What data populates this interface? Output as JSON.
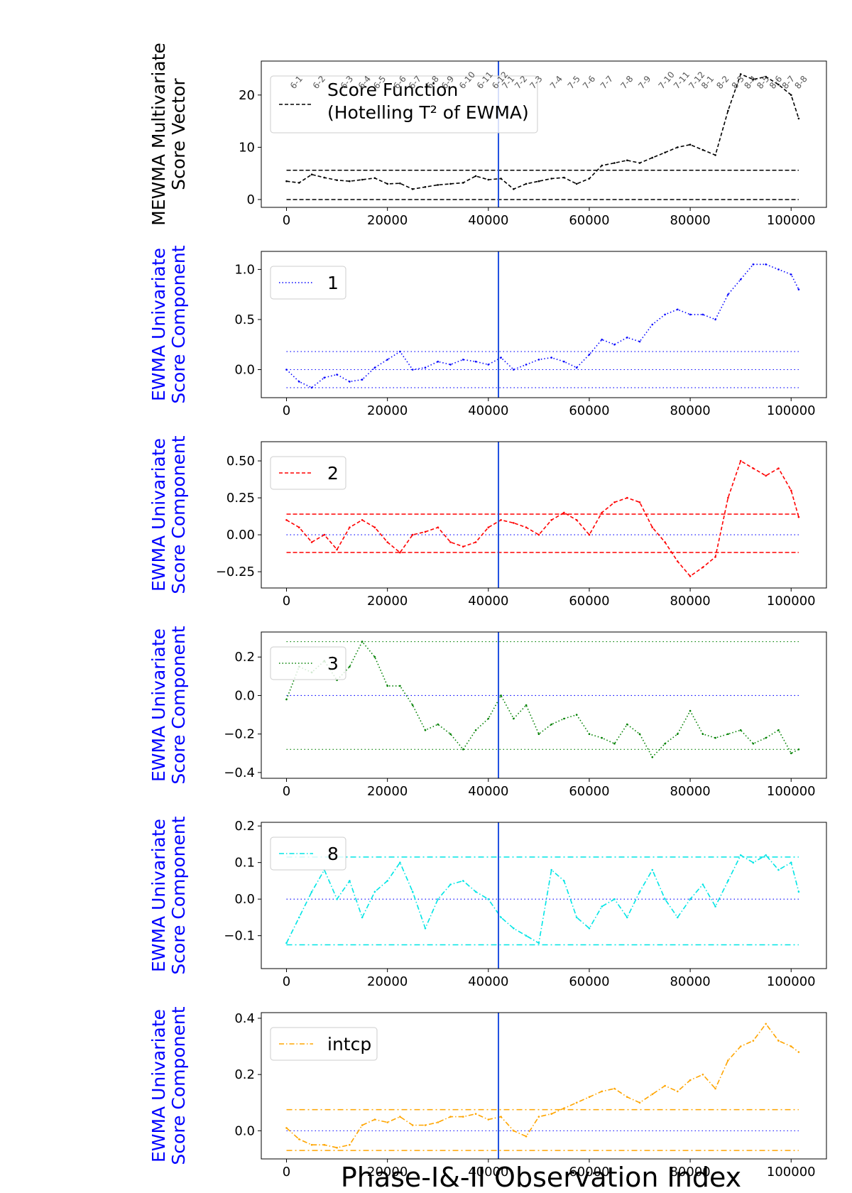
{
  "figure": {
    "xlabel": "Phase-I&-II Observation Index"
  },
  "chart_data": [
    {
      "type": "line",
      "ylabel_lines": [
        "MEWMA Multivariate",
        "Score Vector"
      ],
      "ylabel_color": "#000000",
      "xlim": [
        -5000,
        107000
      ],
      "ylim": [
        -1.5,
        26.5
      ],
      "xticks": [
        0,
        20000,
        40000,
        60000,
        80000,
        100000
      ],
      "yticks": [
        0,
        10,
        20
      ],
      "ytick_labels": [
        "0",
        "10",
        "20"
      ],
      "phase_split_x": 42000,
      "hlines": [
        {
          "y": 0,
          "dash": "dashed",
          "color": "#000000"
        },
        {
          "y": 5.6,
          "dash": "dashed",
          "color": "#000000"
        }
      ],
      "legend": {
        "lines": [
          "Score Function",
          "(Hotelling T² of EWMA)"
        ],
        "dash": "dashed",
        "color": "#000000",
        "placement": "upper-left"
      },
      "month_labels": [
        {
          "label": "6-1",
          "x": 1500
        },
        {
          "label": "6-2",
          "x": 6000
        },
        {
          "label": "6-3",
          "x": 11500
        },
        {
          "label": "6-4",
          "x": 15000
        },
        {
          "label": "6-5",
          "x": 18000
        },
        {
          "label": "6-6",
          "x": 22000
        },
        {
          "label": "6-7",
          "x": 25000
        },
        {
          "label": "6-8",
          "x": 28500
        },
        {
          "label": "6-9",
          "x": 31500
        },
        {
          "label": "6-10",
          "x": 35000
        },
        {
          "label": "6-11",
          "x": 38500
        },
        {
          "label": "6-12",
          "x": 41500
        },
        {
          "label": "7-1",
          "x": 43500
        },
        {
          "label": "7-2",
          "x": 46000
        },
        {
          "label": "7-3",
          "x": 49000
        },
        {
          "label": "7-4",
          "x": 53000
        },
        {
          "label": "7-5",
          "x": 56500
        },
        {
          "label": "7-6",
          "x": 59500
        },
        {
          "label": "7-7",
          "x": 63000
        },
        {
          "label": "7-8",
          "x": 67000
        },
        {
          "label": "7-9",
          "x": 70500
        },
        {
          "label": "7-10",
          "x": 74500
        },
        {
          "label": "7-11",
          "x": 77500
        },
        {
          "label": "7-12",
          "x": 80500
        },
        {
          "label": "8-1",
          "x": 83000
        },
        {
          "label": "8-2",
          "x": 86000
        },
        {
          "label": "8-3",
          "x": 89000
        },
        {
          "label": "8-4",
          "x": 91500
        },
        {
          "label": "8-5",
          "x": 94000
        },
        {
          "label": "8-6",
          "x": 96500
        },
        {
          "label": "8-7",
          "x": 99000
        },
        {
          "label": "8-8",
          "x": 101500
        }
      ],
      "series": [
        {
          "color": "#000000",
          "dash": "dashed",
          "x": [
            0,
            2500,
            5000,
            7500,
            10000,
            12500,
            15000,
            17500,
            20000,
            22500,
            25000,
            27500,
            30000,
            32500,
            35000,
            37500,
            40000,
            42500,
            45000,
            47500,
            50000,
            52500,
            55000,
            57500,
            60000,
            62500,
            65000,
            67500,
            70000,
            72500,
            75000,
            77500,
            80000,
            82500,
            85000,
            87500,
            90000,
            92500,
            95000,
            97500,
            100000,
            101500
          ],
          "y": [
            3.5,
            3.2,
            4.8,
            4.2,
            3.7,
            3.5,
            3.8,
            4.1,
            3.0,
            3.1,
            2.0,
            2.4,
            2.8,
            3.0,
            3.2,
            4.5,
            3.8,
            4.0,
            2.0,
            3.0,
            3.5,
            4.0,
            4.2,
            3.0,
            4.0,
            6.5,
            7.0,
            7.5,
            7.0,
            8.0,
            9.0,
            10.0,
            10.5,
            9.5,
            8.5,
            17.0,
            24.0,
            23.0,
            23.5,
            22.0,
            20.0,
            15.5
          ]
        }
      ]
    },
    {
      "type": "line",
      "ylabel_lines": [
        "EWMA Univariate",
        "Score Component"
      ],
      "ylabel_color": "#0000ff",
      "xlim": [
        -5000,
        107000
      ],
      "ylim": [
        -0.28,
        1.18
      ],
      "xticks": [
        0,
        20000,
        40000,
        60000,
        80000,
        100000
      ],
      "yticks": [
        0,
        0.5,
        1.0
      ],
      "ytick_labels": [
        "0.0",
        "0.5",
        "1.0"
      ],
      "phase_split_x": 42000,
      "hlines": [
        {
          "y": 0.18,
          "dash": "dotted",
          "color": "#0000ff"
        },
        {
          "y": 0,
          "dash": "dotted",
          "color": "#0000ff"
        },
        {
          "y": -0.18,
          "dash": "dotted",
          "color": "#0000ff"
        }
      ],
      "legend": {
        "lines": [
          "1"
        ],
        "dash": "dotted",
        "color": "#0000ff",
        "placement": "upper-left"
      },
      "series": [
        {
          "name": "1",
          "color": "#0000ff",
          "dash": "dotted",
          "x": [
            0,
            2500,
            5000,
            7500,
            10000,
            12500,
            15000,
            17500,
            20000,
            22500,
            25000,
            27500,
            30000,
            32500,
            35000,
            37500,
            40000,
            42500,
            45000,
            47500,
            50000,
            52500,
            55000,
            57500,
            60000,
            62500,
            65000,
            67500,
            70000,
            72500,
            75000,
            77500,
            80000,
            82500,
            85000,
            87500,
            90000,
            92500,
            95000,
            97500,
            100000,
            101500
          ],
          "y": [
            0.0,
            -0.12,
            -0.18,
            -0.08,
            -0.05,
            -0.12,
            -0.1,
            0.02,
            0.1,
            0.18,
            0.0,
            0.02,
            0.08,
            0.05,
            0.1,
            0.08,
            0.05,
            0.12,
            0.0,
            0.05,
            0.1,
            0.12,
            0.08,
            0.02,
            0.15,
            0.3,
            0.25,
            0.32,
            0.28,
            0.45,
            0.55,
            0.6,
            0.55,
            0.55,
            0.5,
            0.75,
            0.9,
            1.05,
            1.05,
            1.0,
            0.95,
            0.8
          ]
        }
      ]
    },
    {
      "type": "line",
      "ylabel_lines": [
        "EWMA Univariate",
        "Score Component"
      ],
      "ylabel_color": "#0000ff",
      "xlim": [
        -5000,
        107000
      ],
      "ylim": [
        -0.36,
        0.63
      ],
      "xticks": [
        0,
        20000,
        40000,
        60000,
        80000,
        100000
      ],
      "yticks": [
        -0.25,
        0,
        0.25,
        0.5
      ],
      "ytick_labels": [
        "−0.25",
        "0.00",
        "0.25",
        "0.50"
      ],
      "phase_split_x": 42000,
      "hlines": [
        {
          "y": 0.14,
          "dash": "dashed",
          "color": "#ff0000"
        },
        {
          "y": 0,
          "dash": "dotted",
          "color": "#0000ff"
        },
        {
          "y": -0.12,
          "dash": "dashed",
          "color": "#ff0000"
        }
      ],
      "legend": {
        "lines": [
          "2"
        ],
        "dash": "dashed",
        "color": "#ff0000",
        "placement": "upper-left"
      },
      "series": [
        {
          "name": "2",
          "color": "#ff0000",
          "dash": "dashed",
          "x": [
            0,
            2500,
            5000,
            7500,
            10000,
            12500,
            15000,
            17500,
            20000,
            22500,
            25000,
            27500,
            30000,
            32500,
            35000,
            37500,
            40000,
            42500,
            45000,
            47500,
            50000,
            52500,
            55000,
            57500,
            60000,
            62500,
            65000,
            67500,
            70000,
            72500,
            75000,
            77500,
            80000,
            82500,
            85000,
            87500,
            90000,
            92500,
            95000,
            97500,
            100000,
            101500
          ],
          "y": [
            0.1,
            0.05,
            -0.05,
            0.0,
            -0.1,
            0.05,
            0.1,
            0.05,
            -0.05,
            -0.12,
            0.0,
            0.02,
            0.05,
            -0.05,
            -0.08,
            -0.05,
            0.05,
            0.1,
            0.08,
            0.05,
            0.0,
            0.1,
            0.15,
            0.1,
            0.0,
            0.15,
            0.22,
            0.25,
            0.22,
            0.05,
            -0.05,
            -0.18,
            -0.28,
            -0.22,
            -0.15,
            0.25,
            0.5,
            0.45,
            0.4,
            0.45,
            0.3,
            0.12
          ]
        }
      ]
    },
    {
      "type": "line",
      "ylabel_lines": [
        "EWMA Univariate",
        "Score Component"
      ],
      "ylabel_color": "#0000ff",
      "xlim": [
        -5000,
        107000
      ],
      "ylim": [
        -0.43,
        0.33
      ],
      "xticks": [
        0,
        20000,
        40000,
        60000,
        80000,
        100000
      ],
      "yticks": [
        -0.4,
        -0.2,
        0,
        0.2
      ],
      "ytick_labels": [
        "−0.4",
        "−0.2",
        "0.0",
        "0.2"
      ],
      "phase_split_x": 42000,
      "hlines": [
        {
          "y": 0.28,
          "dash": "dotted",
          "color": "#008000"
        },
        {
          "y": 0,
          "dash": "dotted",
          "color": "#0000ff"
        },
        {
          "y": -0.28,
          "dash": "dotted",
          "color": "#008000"
        }
      ],
      "legend": {
        "lines": [
          "3"
        ],
        "dash": "dotted",
        "color": "#008000",
        "placement": "upper-left"
      },
      "series": [
        {
          "name": "3",
          "color": "#008000",
          "dash": "dotted",
          "x": [
            0,
            2500,
            5000,
            7500,
            10000,
            12500,
            15000,
            17500,
            20000,
            22500,
            25000,
            27500,
            30000,
            32500,
            35000,
            37500,
            40000,
            42500,
            45000,
            47500,
            50000,
            52500,
            55000,
            57500,
            60000,
            62500,
            65000,
            67500,
            70000,
            72500,
            75000,
            77500,
            80000,
            82500,
            85000,
            87500,
            90000,
            92500,
            95000,
            97500,
            100000,
            101500
          ],
          "y": [
            -0.02,
            0.15,
            0.12,
            0.18,
            0.08,
            0.15,
            0.28,
            0.2,
            0.05,
            0.05,
            -0.05,
            -0.18,
            -0.15,
            -0.2,
            -0.28,
            -0.18,
            -0.12,
            0.0,
            -0.12,
            -0.05,
            -0.2,
            -0.15,
            -0.12,
            -0.1,
            -0.2,
            -0.22,
            -0.25,
            -0.15,
            -0.2,
            -0.32,
            -0.25,
            -0.2,
            -0.08,
            -0.2,
            -0.22,
            -0.2,
            -0.18,
            -0.25,
            -0.22,
            -0.18,
            -0.3,
            -0.28
          ]
        }
      ]
    },
    {
      "type": "line",
      "ylabel_lines": [
        "EWMA Univariate",
        "Score Component"
      ],
      "ylabel_color": "#0000ff",
      "xlim": [
        -5000,
        107000
      ],
      "ylim": [
        -0.19,
        0.21
      ],
      "xticks": [
        0,
        20000,
        40000,
        60000,
        80000,
        100000
      ],
      "yticks": [
        -0.1,
        0,
        0.1,
        0.2
      ],
      "ytick_labels": [
        "−0.1",
        "0.0",
        "0.1",
        "0.2"
      ],
      "phase_split_x": 42000,
      "hlines": [
        {
          "y": 0.115,
          "dash": "dashdot",
          "color": "#00e5e5"
        },
        {
          "y": 0,
          "dash": "dotted",
          "color": "#0000ff"
        },
        {
          "y": -0.125,
          "dash": "dashdot",
          "color": "#00e5e5"
        }
      ],
      "legend": {
        "lines": [
          "8"
        ],
        "dash": "dashdot",
        "color": "#00e5e5",
        "placement": "upper-left"
      },
      "series": [
        {
          "name": "8",
          "color": "#00e5e5",
          "dash": "dashdot",
          "x": [
            0,
            2500,
            5000,
            7500,
            10000,
            12500,
            15000,
            17500,
            20000,
            22500,
            25000,
            27500,
            30000,
            32500,
            35000,
            37500,
            40000,
            42500,
            45000,
            47500,
            50000,
            52500,
            55000,
            57500,
            60000,
            62500,
            65000,
            67500,
            70000,
            72500,
            75000,
            77500,
            80000,
            82500,
            85000,
            87500,
            90000,
            92500,
            95000,
            97500,
            100000,
            101500
          ],
          "y": [
            -0.12,
            -0.05,
            0.02,
            0.08,
            0.0,
            0.05,
            -0.05,
            0.02,
            0.05,
            0.1,
            0.02,
            -0.08,
            0.0,
            0.04,
            0.05,
            0.02,
            0.0,
            -0.05,
            -0.08,
            -0.1,
            -0.12,
            0.08,
            0.05,
            -0.05,
            -0.08,
            -0.02,
            0.0,
            -0.05,
            0.02,
            0.08,
            0.0,
            -0.05,
            0.0,
            0.04,
            -0.02,
            0.05,
            0.12,
            0.1,
            0.12,
            0.08,
            0.1,
            0.02
          ]
        }
      ]
    },
    {
      "type": "line",
      "ylabel_lines": [
        "EWMA Univariate",
        "Score Component"
      ],
      "ylabel_color": "#0000ff",
      "xlim": [
        -5000,
        107000
      ],
      "ylim": [
        -0.1,
        0.42
      ],
      "xticks": [
        0,
        20000,
        40000,
        60000,
        80000,
        100000
      ],
      "yticks": [
        0,
        0.2,
        0.4
      ],
      "ytick_labels": [
        "0.0",
        "0.2",
        "0.4"
      ],
      "phase_split_x": 42000,
      "hlines": [
        {
          "y": 0.075,
          "dash": "dashdot",
          "color": "#ffa500"
        },
        {
          "y": 0,
          "dash": "dotted",
          "color": "#0000ff"
        },
        {
          "y": -0.07,
          "dash": "dashdot",
          "color": "#ffa500"
        }
      ],
      "legend": {
        "lines": [
          "intcp"
        ],
        "dash": "dashdot",
        "color": "#ffa500",
        "placement": "upper-left"
      },
      "series": [
        {
          "name": "intcp",
          "color": "#ffa500",
          "dash": "dashdot",
          "x": [
            0,
            2500,
            5000,
            7500,
            10000,
            12500,
            15000,
            17500,
            20000,
            22500,
            25000,
            27500,
            30000,
            32500,
            35000,
            37500,
            40000,
            42500,
            45000,
            47500,
            50000,
            52500,
            55000,
            57500,
            60000,
            62500,
            65000,
            67500,
            70000,
            72500,
            75000,
            77500,
            80000,
            82500,
            85000,
            87500,
            90000,
            92500,
            95000,
            97500,
            100000,
            101500
          ],
          "y": [
            0.01,
            -0.03,
            -0.05,
            -0.05,
            -0.06,
            -0.05,
            0.02,
            0.04,
            0.03,
            0.05,
            0.02,
            0.02,
            0.03,
            0.05,
            0.05,
            0.06,
            0.04,
            0.05,
            0.0,
            -0.02,
            0.05,
            0.06,
            0.08,
            0.1,
            0.12,
            0.14,
            0.15,
            0.12,
            0.1,
            0.13,
            0.16,
            0.14,
            0.18,
            0.2,
            0.15,
            0.25,
            0.3,
            0.32,
            0.38,
            0.32,
            0.3,
            0.28
          ]
        }
      ]
    }
  ]
}
